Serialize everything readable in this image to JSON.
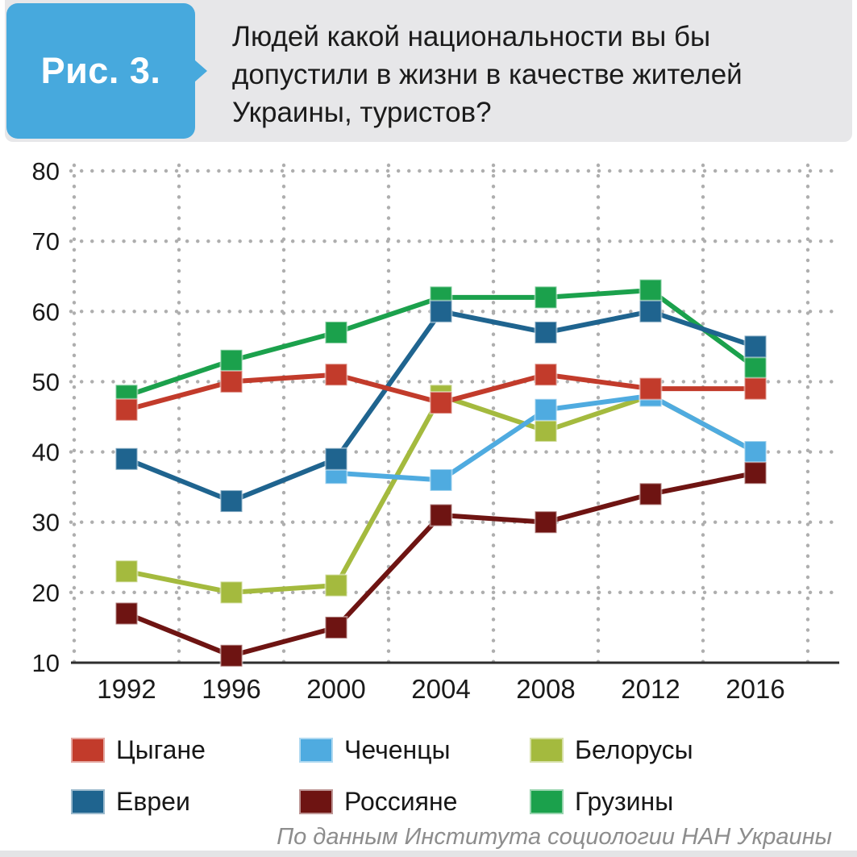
{
  "header": {
    "badge": "Рис. 3.",
    "title_lines": [
      "Людей какой национальности вы бы",
      "допустили в жизни в качестве жителей",
      "Украины, туристов?"
    ]
  },
  "chart_data": {
    "type": "line",
    "title": "Людей какой национальности вы бы допустили в жизни в качестве жителей Украины, туристов?",
    "categories": [
      "1992",
      "1996",
      "2000",
      "2004",
      "2008",
      "2012",
      "2016"
    ],
    "series": [
      {
        "name": "Цыгане",
        "color": "#c23b2b",
        "values": [
          46,
          50,
          51,
          47,
          51,
          49,
          49
        ]
      },
      {
        "name": "Чеченцы",
        "color": "#4fabe0",
        "values": [
          null,
          null,
          37,
          36,
          46,
          48,
          40
        ]
      },
      {
        "name": "Белорусы",
        "color": "#a4ba3e",
        "values": [
          23,
          20,
          21,
          48,
          43,
          48,
          40
        ]
      },
      {
        "name": "Евреи",
        "color": "#1f648f",
        "values": [
          39,
          33,
          39,
          60,
          57,
          60,
          55
        ]
      },
      {
        "name": "Россияне",
        "color": "#6e1412",
        "values": [
          17,
          11,
          15,
          31,
          30,
          34,
          37
        ]
      },
      {
        "name": "Грузины",
        "color": "#1ba14c",
        "values": [
          48,
          53,
          57,
          62,
          62,
          63,
          52
        ]
      }
    ],
    "legend_order": [
      "Цыгане",
      "Чеченцы",
      "Белорусы",
      "Евреи",
      "Россияне",
      "Грузины"
    ],
    "draw_order": [
      "Грузины",
      "Белорусы",
      "Чеченцы",
      "Евреи",
      "Россияне",
      "Цыгане"
    ],
    "ylim": [
      10,
      80
    ],
    "yticks": [
      10,
      20,
      30,
      40,
      50,
      60,
      70,
      80
    ],
    "grid": "dotted",
    "legend_position": "bottom",
    "source": "По данным Института социологии НАН Украины"
  },
  "theme": {
    "badge_blue": "#47a9dd",
    "header_gray": "#e7e7e9",
    "grid_dot_color": "#aeaeae",
    "axis_color": "#2e2e2e",
    "tick_text_color": "#1a1a1a",
    "source_text_color": "#8d8d8d"
  }
}
